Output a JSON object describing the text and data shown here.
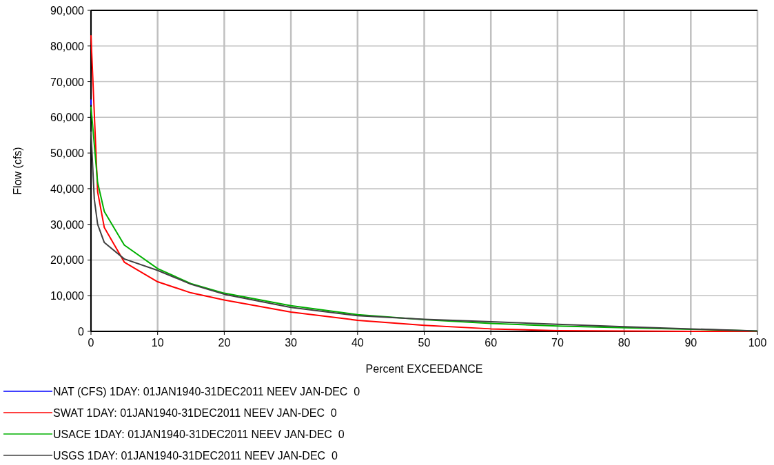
{
  "chart_data": {
    "type": "line",
    "xlabel": "Percent EXCEEDANCE",
    "ylabel": "Flow (cfs)",
    "x": [
      0,
      1,
      2,
      5,
      10,
      15,
      20,
      30,
      40,
      50,
      60,
      70,
      80,
      90,
      100
    ],
    "xlim": [
      0,
      100
    ],
    "xticks": [
      0,
      10,
      20,
      30,
      40,
      50,
      60,
      70,
      80,
      90,
      100
    ],
    "ylim": [
      0,
      90000
    ],
    "yticks": [
      {
        "value": 0,
        "label": "0"
      },
      {
        "value": 10000,
        "label": "10,000"
      },
      {
        "value": 20000,
        "label": "20,000"
      },
      {
        "value": 30000,
        "label": "30,000"
      },
      {
        "value": 40000,
        "label": "40,000"
      },
      {
        "value": 50000,
        "label": "50,000"
      },
      {
        "value": 60000,
        "label": "60,000"
      },
      {
        "value": 70000,
        "label": "70,000"
      },
      {
        "value": 80000,
        "label": "80,000"
      },
      {
        "value": 90000,
        "label": "90,000"
      }
    ],
    "grid": true,
    "legend": "bottom",
    "marker": "none",
    "line_style": "solid",
    "series": [
      {
        "name": "NAT (CFS) 1DAY: 01JAN1940-31DEC2011 NEEV JAN-DEC  0",
        "color": "#0000ff",
        "x": [
          0,
          0
        ],
        "values": [
          65000,
          63500
        ]
      },
      {
        "name": "SWAT 1DAY: 01JAN1940-31DEC2011 NEEV JAN-DEC  0",
        "color": "#ff0000",
        "values": [
          83000,
          39100,
          29100,
          19400,
          13900,
          10800,
          8800,
          5400,
          3100,
          1700,
          700,
          200,
          100,
          0,
          0
        ]
      },
      {
        "name": "USACE 1DAY: 01JAN1940-31DEC2011 NEEV JAN-DEC  0",
        "color": "#00b000",
        "values": [
          63000,
          41700,
          33600,
          24200,
          17600,
          13400,
          10700,
          7200,
          4700,
          3300,
          2200,
          1500,
          1000,
          600,
          100
        ]
      },
      {
        "name": "USGS 1DAY: 01JAN1940-31DEC2011 NEEV JAN-DEC  0",
        "color": "#404040",
        "x": [
          0,
          0.5,
          1,
          2,
          5,
          10,
          15,
          20,
          30,
          40,
          50,
          60,
          70,
          80,
          90,
          100
        ],
        "values": [
          56000,
          37000,
          30000,
          24900,
          20300,
          17100,
          13200,
          10400,
          6700,
          4400,
          3400,
          2700,
          2000,
          1300,
          700,
          100
        ]
      }
    ]
  }
}
